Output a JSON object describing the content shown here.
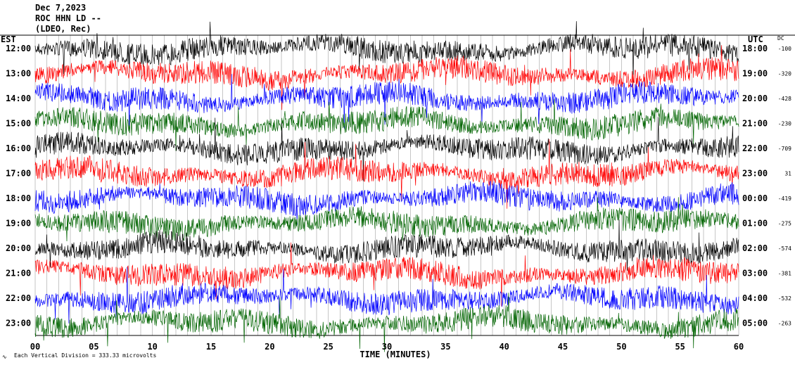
{
  "header": {
    "date": "Dec 7,2023",
    "station": "ROC HHN LD --",
    "network": "(LDEO, Rec)"
  },
  "chart_data": {
    "type": "line",
    "title": "Dec 7,2023",
    "left_axis_label": "EST",
    "right_axis_label": "UTC",
    "dc_label": "DC",
    "xlabel": "TIME (MINUTES)",
    "x_ticks": [
      0,
      5,
      10,
      15,
      20,
      25,
      30,
      35,
      40,
      45,
      50,
      55,
      60
    ],
    "x_tick_labels": [
      "00",
      "05",
      "10",
      "15",
      "20",
      "25",
      "30",
      "35",
      "40",
      "45",
      "50",
      "55",
      "60"
    ],
    "xlim": [
      0,
      60
    ],
    "trace_colors": [
      "#000000",
      "#ff0000",
      "#0000ff",
      "#006400"
    ],
    "rows": [
      {
        "est": "12:00",
        "utc": "18:00",
        "dc": "-100"
      },
      {
        "est": "13:00",
        "utc": "19:00",
        "dc": "-320"
      },
      {
        "est": "14:00",
        "utc": "20:00",
        "dc": "-428"
      },
      {
        "est": "15:00",
        "utc": "21:00",
        "dc": "-230"
      },
      {
        "est": "16:00",
        "utc": "22:00",
        "dc": "-709"
      },
      {
        "est": "17:00",
        "utc": "23:00",
        "dc": "31"
      },
      {
        "est": "18:00",
        "utc": "00:00",
        "dc": "-419"
      },
      {
        "est": "19:00",
        "utc": "01:00",
        "dc": "-275"
      },
      {
        "est": "20:00",
        "utc": "02:00",
        "dc": "-574"
      },
      {
        "est": "21:00",
        "utc": "03:00",
        "dc": "-381"
      },
      {
        "est": "22:00",
        "utc": "04:00",
        "dc": "-532"
      },
      {
        "est": "23:00",
        "utc": "05:00",
        "dc": "-263"
      }
    ],
    "scale_note": "Each Vertical Division = 333.33 microvolts",
    "grid": "vertical lines each minute"
  }
}
